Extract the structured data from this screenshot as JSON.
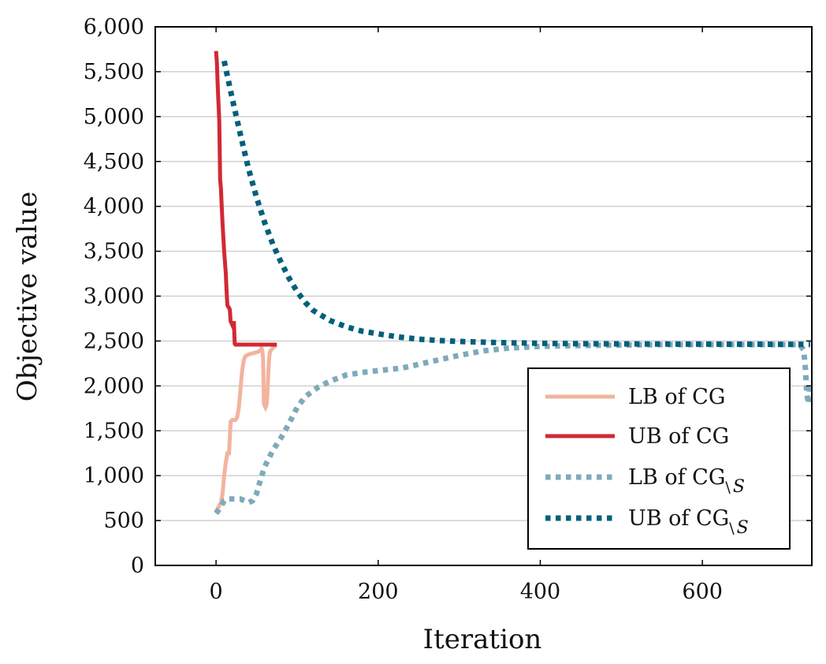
{
  "chart_data": {
    "type": "line",
    "title": "",
    "xlabel": "Iteration",
    "ylabel": "Objective value",
    "xlim": [
      -75,
      735
    ],
    "ylim": [
      0,
      6000
    ],
    "xticks": [
      0,
      200,
      400,
      600
    ],
    "xtick_labels": [
      "0",
      "200",
      "400",
      "600"
    ],
    "yticks": [
      0,
      500,
      1000,
      1500,
      2000,
      2500,
      3000,
      3500,
      4000,
      4500,
      5000,
      5500,
      6000
    ],
    "ytick_labels": [
      "0",
      "500",
      "1,000",
      "1,500",
      "2,000",
      "2,500",
      "3,000",
      "3,500",
      "4,000",
      "4,500",
      "5,000",
      "5,500",
      "6,000"
    ],
    "grid": "horizontal",
    "legend_position": "bottom-right",
    "series": [
      {
        "name": "LB of CG",
        "legend_main": "LB of CG",
        "legend_sub": "",
        "color": "#f2b49f",
        "style": "solid",
        "x": [
          0,
          3,
          6,
          8,
          10,
          12,
          14,
          16,
          18,
          20,
          22,
          24,
          26,
          28,
          30,
          32,
          34,
          36,
          40,
          44,
          48,
          52,
          55,
          56,
          57,
          58,
          59,
          60,
          61,
          62,
          63,
          64,
          65,
          66,
          67,
          68,
          69,
          70,
          72,
          74
        ],
        "values": [
          600,
          650,
          700,
          800,
          1000,
          1150,
          1250,
          1250,
          1600,
          1620,
          1620,
          1620,
          1650,
          1750,
          1950,
          2150,
          2280,
          2330,
          2350,
          2360,
          2370,
          2380,
          2400,
          2420,
          2400,
          2300,
          1800,
          1780,
          1760,
          1780,
          1850,
          2050,
          2250,
          2350,
          2390,
          2400,
          2410,
          2420,
          2440,
          2450
        ]
      },
      {
        "name": "UB of CG",
        "legend_main": "UB of CG",
        "legend_sub": "",
        "color": "#d02a35",
        "style": "solid",
        "x": [
          0,
          1,
          2,
          3,
          4,
          5,
          6,
          7,
          8,
          10,
          12,
          13,
          14,
          15,
          16,
          17,
          18,
          19,
          20,
          21,
          22,
          23,
          24,
          26,
          28,
          30,
          35,
          40,
          45,
          50,
          55,
          60,
          65,
          70,
          75
        ],
        "values": [
          5730,
          5600,
          5350,
          5150,
          4950,
          4300,
          4200,
          4000,
          3800,
          3500,
          3250,
          3050,
          2900,
          2880,
          2870,
          2850,
          2720,
          2700,
          2680,
          2700,
          2700,
          2470,
          2460,
          2460,
          2460,
          2460,
          2460,
          2460,
          2460,
          2460,
          2460,
          2460,
          2460,
          2460,
          2460
        ]
      },
      {
        "name": "LB of CG\\S",
        "legend_main": "LB of CG",
        "legend_sub": "\\",
        "legend_sub2": "S",
        "color": "#7eaabb",
        "style": "dotted",
        "x": [
          0,
          5,
          10,
          15,
          20,
          25,
          30,
          35,
          40,
          45,
          50,
          55,
          60,
          70,
          80,
          90,
          100,
          110,
          125,
          140,
          160,
          180,
          200,
          230,
          260,
          300,
          330,
          360,
          400,
          450,
          500,
          550,
          600,
          650,
          700,
          720,
          725,
          727,
          729,
          731,
          733
        ],
        "values": [
          580,
          640,
          720,
          740,
          740,
          740,
          740,
          720,
          700,
          720,
          800,
          960,
          1100,
          1280,
          1420,
          1580,
          1760,
          1880,
          1980,
          2050,
          2120,
          2150,
          2170,
          2200,
          2260,
          2340,
          2390,
          2420,
          2440,
          2450,
          2455,
          2460,
          2460,
          2460,
          2460,
          2460,
          2400,
          2200,
          1900,
          1800,
          2050
        ]
      },
      {
        "name": "UB of CG\\S",
        "legend_main": "UB of CG",
        "legend_sub": "\\",
        "legend_sub2": "S",
        "color": "#00607a",
        "style": "dotted",
        "x": [
          10,
          20,
          30,
          40,
          50,
          60,
          70,
          80,
          90,
          100,
          110,
          120,
          140,
          160,
          180,
          200,
          225,
          250,
          275,
          300,
          350,
          400,
          450,
          500,
          550,
          600,
          650,
          700,
          733
        ],
        "values": [
          5620,
          5200,
          4800,
          4420,
          4100,
          3820,
          3580,
          3380,
          3200,
          3050,
          2930,
          2840,
          2730,
          2660,
          2610,
          2580,
          2545,
          2520,
          2505,
          2495,
          2482,
          2475,
          2470,
          2468,
          2466,
          2465,
          2464,
          2463,
          2462
        ]
      }
    ]
  }
}
